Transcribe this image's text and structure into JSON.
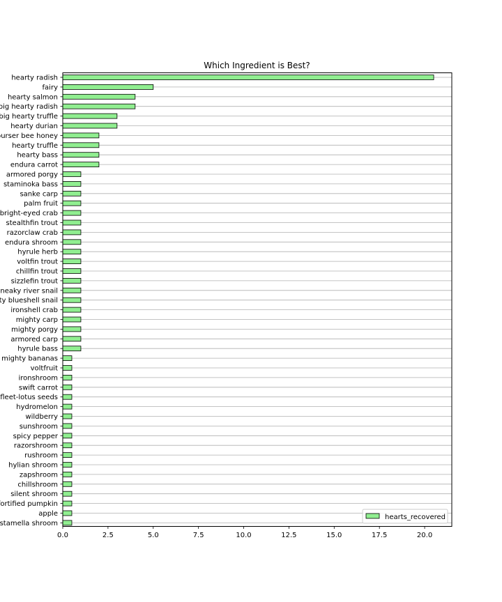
{
  "chart_data": {
    "type": "bar",
    "orientation": "horizontal",
    "title": "Which Ingredient is Best?",
    "xlabel": "",
    "ylabel": "",
    "xlim": [
      0,
      21.5
    ],
    "x_ticks": [
      "0.0",
      "2.5",
      "5.0",
      "7.5",
      "10.0",
      "12.5",
      "15.0",
      "17.5",
      "20.0"
    ],
    "grid": "horizontal lines",
    "legend_position": "bottom-right",
    "bar_color": "#90ee90",
    "edge_color": "#000000",
    "categories": [
      "hearty radish",
      "fairy",
      "hearty salmon",
      "big hearty radish",
      "big hearty truffle",
      "hearty durian",
      "courser bee honey",
      "hearty truffle",
      "hearty bass",
      "endura carrot",
      "armored porgy",
      "staminoka bass",
      "sanke carp",
      "palm fruit",
      "bright-eyed crab",
      "stealthfin trout",
      "razorclaw crab",
      "endura shroom",
      "hyrule herb",
      "voltfin trout",
      "chillfin trout",
      "sizzlefin trout",
      "sneaky river snail",
      "hearty blueshell snail",
      "ironshell crab",
      "mighty carp",
      "mighty porgy",
      "armored carp",
      "hyrule bass",
      "mighty bananas",
      "voltfruit",
      "ironshroom",
      "swift carrot",
      "fleet-lotus seeds",
      "hydromelon",
      "wildberry",
      "sunshroom",
      "spicy pepper",
      "razorshroom",
      "rushroom",
      "hylian shroom",
      "zapshroom",
      "chillshroom",
      "silent shroom",
      "fortified pumpkin",
      "apple",
      "stamella shroom"
    ],
    "series": [
      {
        "name": "hearts_recovered",
        "values": [
          20.5,
          5,
          4,
          4,
          3,
          3,
          2,
          2,
          2,
          2,
          1,
          1,
          1,
          1,
          1,
          1,
          1,
          1,
          1,
          1,
          1,
          1,
          1,
          1,
          1,
          1,
          1,
          1,
          1,
          0.5,
          0.5,
          0.5,
          0.5,
          0.5,
          0.5,
          0.5,
          0.5,
          0.5,
          0.5,
          0.5,
          0.5,
          0.5,
          0.5,
          0.5,
          0.5,
          0.5,
          0.5
        ]
      }
    ]
  }
}
